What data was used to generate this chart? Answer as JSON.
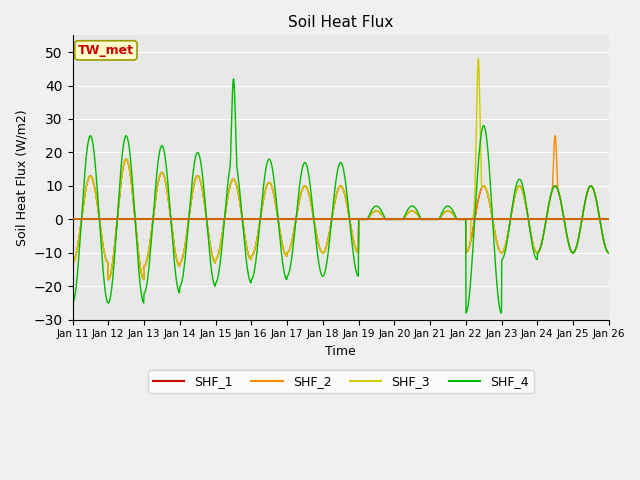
{
  "title": "Soil Heat Flux",
  "xlabel": "Time",
  "ylabel": "Soil Heat Flux (W/m2)",
  "ylim": [
    -30,
    55
  ],
  "yticks": [
    -30,
    -20,
    -10,
    0,
    10,
    20,
    30,
    40,
    50
  ],
  "plot_bg_color": "#e8e8e8",
  "fig_bg_color": "#f0f0f0",
  "annotation_text": "TW_met",
  "annotation_bg": "#ffffcc",
  "annotation_border": "#999900",
  "annotation_fg": "#cc0000",
  "line_colors": {
    "SHF_1": "#cc0000",
    "SHF_2": "#ff8800",
    "SHF_3": "#cccc00",
    "SHF_4": "#00bb00"
  },
  "hline_color": "#cc6600",
  "hline_y": 0
}
